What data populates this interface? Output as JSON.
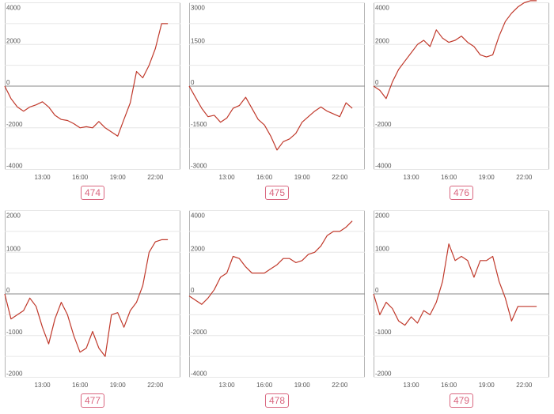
{
  "chart_data": [
    {
      "type": "line",
      "label": "474",
      "ylim": [
        -4000,
        4000
      ],
      "yticks": [
        4000,
        2000,
        0,
        -2000,
        -4000
      ],
      "ytick_labels": [
        "4000",
        "2000",
        "0",
        "-2000",
        "-4000"
      ],
      "xlim": [
        10,
        24
      ],
      "xticks": [
        13,
        16,
        19,
        22
      ],
      "xtick_labels": [
        "13:00",
        "16:00",
        "19:00",
        "22:00"
      ],
      "x": [
        10,
        10.5,
        11,
        11.5,
        12,
        12.5,
        13,
        13.5,
        14,
        14.5,
        15,
        15.5,
        16,
        16.5,
        17,
        17.5,
        18,
        18.5,
        19,
        19.5,
        20,
        20.5,
        21,
        21.5,
        22,
        22.5,
        23
      ],
      "values": [
        0,
        -600,
        -1000,
        -1200,
        -1000,
        -900,
        -750,
        -1000,
        -1400,
        -1600,
        -1650,
        -1800,
        -2000,
        -1950,
        -2000,
        -1700,
        -2000,
        -2200,
        -2400,
        -1600,
        -800,
        700,
        400,
        1000,
        1800,
        3000,
        3000
      ],
      "series_color": "#c0392b"
    },
    {
      "type": "line",
      "label": "475",
      "ylim": [
        -3000,
        3000
      ],
      "yticks": [
        3000,
        1500,
        0,
        -1500,
        -3000
      ],
      "ytick_labels": [
        "3000",
        "1500",
        "0",
        "-1500",
        "-3000"
      ],
      "xlim": [
        10,
        24
      ],
      "xticks": [
        13,
        16,
        19,
        22
      ],
      "xtick_labels": [
        "13:00",
        "16:00",
        "19:00",
        "22:00"
      ],
      "x": [
        10,
        10.5,
        11,
        11.5,
        12,
        12.5,
        13,
        13.5,
        14,
        14.5,
        15,
        15.5,
        16,
        16.5,
        17,
        17.5,
        18,
        18.5,
        19,
        19.5,
        20,
        20.5,
        21,
        21.5,
        22,
        22.5,
        23
      ],
      "values": [
        0,
        -400,
        -800,
        -1100,
        -1050,
        -1300,
        -1150,
        -800,
        -700,
        -400,
        -800,
        -1200,
        -1400,
        -1800,
        -2300,
        -2000,
        -1900,
        -1700,
        -1300,
        -1100,
        -900,
        -750,
        -900,
        -1000,
        -1100,
        -600,
        -800
      ],
      "series_color": "#c0392b"
    },
    {
      "type": "line",
      "label": "476",
      "ylim": [
        -4000,
        4000
      ],
      "yticks": [
        4000,
        2000,
        0,
        -2000,
        -4000
      ],
      "ytick_labels": [
        "4000",
        "2000",
        "0",
        "-2000",
        "-4000"
      ],
      "xlim": [
        10,
        24
      ],
      "xticks": [
        13,
        16,
        19,
        22
      ],
      "xtick_labels": [
        "13:00",
        "16:00",
        "19:00",
        "22:00"
      ],
      "x": [
        10,
        10.5,
        11,
        11.5,
        12,
        12.5,
        13,
        13.5,
        14,
        14.5,
        15,
        15.5,
        16,
        16.5,
        17,
        17.5,
        18,
        18.5,
        19,
        19.5,
        20,
        20.5,
        21,
        21.5,
        22,
        22.5,
        23
      ],
      "values": [
        0,
        -200,
        -600,
        200,
        800,
        1200,
        1600,
        2000,
        2200,
        1900,
        2700,
        2300,
        2100,
        2200,
        2400,
        2100,
        1900,
        1500,
        1400,
        1500,
        2400,
        3100,
        3500,
        3800,
        4000,
        4100,
        4100
      ],
      "series_color": "#c0392b"
    },
    {
      "type": "line",
      "label": "477",
      "ylim": [
        -2000,
        2000
      ],
      "yticks": [
        2000,
        1000,
        0,
        -1000,
        -2000
      ],
      "ytick_labels": [
        "2000",
        "1000",
        "0",
        "-1000",
        "-2000"
      ],
      "xlim": [
        10,
        24
      ],
      "xticks": [
        13,
        16,
        19,
        22
      ],
      "xtick_labels": [
        "13:00",
        "16:00",
        "19:00",
        "22:00"
      ],
      "x": [
        10,
        10.5,
        11,
        11.5,
        12,
        12.5,
        13,
        13.5,
        14,
        14.5,
        15,
        15.5,
        16,
        16.5,
        17,
        17.5,
        18,
        18.5,
        19,
        19.5,
        20,
        20.5,
        21,
        21.5,
        22,
        22.5,
        23
      ],
      "values": [
        0,
        -600,
        -500,
        -400,
        -100,
        -300,
        -800,
        -1200,
        -600,
        -200,
        -500,
        -1000,
        -1400,
        -1300,
        -900,
        -1300,
        -1500,
        -500,
        -450,
        -800,
        -400,
        -200,
        200,
        1000,
        1250,
        1300,
        1300
      ],
      "series_color": "#c0392b"
    },
    {
      "type": "line",
      "label": "478",
      "ylim": [
        -4000,
        4000
      ],
      "yticks": [
        4000,
        2000,
        0,
        -2000,
        -4000
      ],
      "ytick_labels": [
        "4000",
        "2000",
        "0",
        "-2000",
        "-4000"
      ],
      "xlim": [
        10,
        24
      ],
      "xticks": [
        13,
        16,
        19,
        22
      ],
      "xtick_labels": [
        "13:00",
        "16:00",
        "19:00",
        "22:00"
      ],
      "x": [
        10,
        10.5,
        11,
        11.5,
        12,
        12.5,
        13,
        13.5,
        14,
        14.5,
        15,
        15.5,
        16,
        16.5,
        17,
        17.5,
        18,
        18.5,
        19,
        19.5,
        20,
        20.5,
        21,
        21.5,
        22,
        22.5,
        23
      ],
      "values": [
        -100,
        -300,
        -500,
        -200,
        200,
        800,
        1000,
        1800,
        1700,
        1300,
        1000,
        1000,
        1000,
        1200,
        1400,
        1700,
        1700,
        1500,
        1600,
        1900,
        2000,
        2300,
        2800,
        3000,
        3000,
        3200,
        3500
      ],
      "series_color": "#c0392b"
    },
    {
      "type": "line",
      "label": "479",
      "ylim": [
        -2000,
        2000
      ],
      "yticks": [
        2000,
        1000,
        0,
        -1000,
        -2000
      ],
      "ytick_labels": [
        "2000",
        "1000",
        "0",
        "-1000",
        "-2000"
      ],
      "xlim": [
        10,
        24
      ],
      "xticks": [
        13,
        16,
        19,
        22
      ],
      "xtick_labels": [
        "13:00",
        "16:00",
        "19:00",
        "22:00"
      ],
      "x": [
        10,
        10.5,
        11,
        11.5,
        12,
        12.5,
        13,
        13.5,
        14,
        14.5,
        15,
        15.5,
        16,
        16.5,
        17,
        17.5,
        18,
        18.5,
        19,
        19.5,
        20,
        20.5,
        21,
        21.5,
        22,
        22.5,
        23
      ],
      "values": [
        0,
        -500,
        -200,
        -350,
        -650,
        -750,
        -550,
        -700,
        -400,
        -500,
        -200,
        300,
        1200,
        800,
        900,
        800,
        400,
        800,
        800,
        900,
        300,
        -100,
        -650,
        -300,
        -300,
        -300,
        -300
      ],
      "series_color": "#c0392b"
    }
  ]
}
